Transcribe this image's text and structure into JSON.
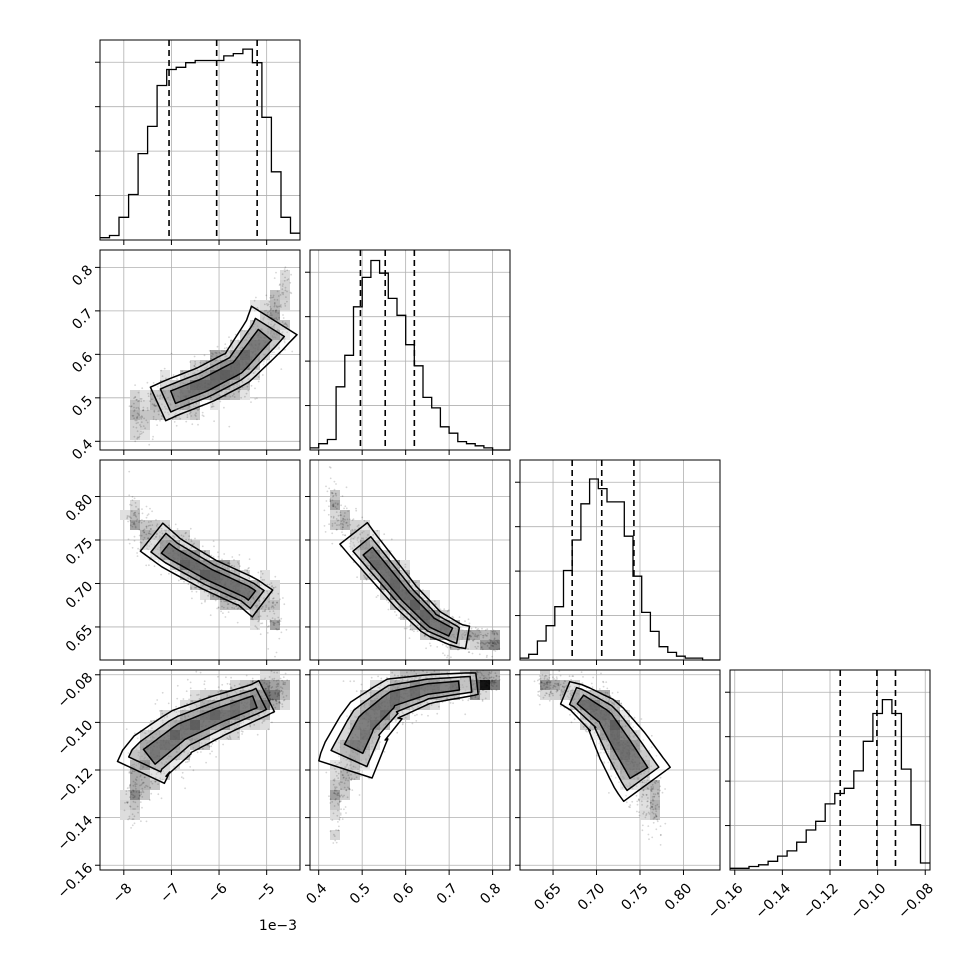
{
  "figure": {
    "offset_text": "1e−3"
  },
  "chart_data": {
    "type": "corner",
    "grid": true,
    "parameters": [
      {
        "axis_range": [
          -8.5,
          -4.3
        ],
        "ticks": [
          -8,
          -7,
          -6,
          -5
        ],
        "tick_labels": [
          "−8",
          "−7",
          "−6",
          "−5"
        ],
        "scale_factor": 0.001,
        "quantiles": [
          -7.05,
          -6.05,
          -5.2
        ],
        "hist_bin_edges": [
          -8.5,
          -8.3,
          -8.1,
          -7.9,
          -7.7,
          -7.5,
          -7.3,
          -7.1,
          -6.9,
          -6.7,
          -6.5,
          -6.3,
          -6.1,
          -5.9,
          -5.7,
          -5.5,
          -5.3,
          -5.1,
          -4.9,
          -4.7,
          -4.5,
          -4.3
        ],
        "hist_counts": [
          1,
          2,
          10,
          20,
          38,
          50,
          68,
          75,
          76,
          78,
          79,
          79,
          79,
          81,
          82,
          84,
          78,
          54,
          30,
          10,
          3
        ],
        "hist_ylim": [
          0,
          88
        ]
      },
      {
        "axis_range": [
          0.38,
          0.84
        ],
        "ticks": [
          0.4,
          0.5,
          0.6,
          0.7,
          0.8
        ],
        "tick_labels": [
          "0.4",
          "0.5",
          "0.6",
          "0.7",
          "0.8"
        ],
        "quantiles": [
          0.496,
          0.553,
          0.62
        ],
        "hist_bin_edges": [
          0.38,
          0.4,
          0.42,
          0.44,
          0.46,
          0.48,
          0.5,
          0.52,
          0.54,
          0.56,
          0.58,
          0.6,
          0.62,
          0.64,
          0.66,
          0.68,
          0.7,
          0.72,
          0.74,
          0.76,
          0.78,
          0.8,
          0.82,
          0.84
        ],
        "hist_counts": [
          1,
          3,
          5,
          30,
          45,
          68,
          82,
          90,
          84,
          72,
          64,
          50,
          40,
          25,
          20,
          11,
          8,
          4,
          3,
          2,
          1,
          0,
          0
        ],
        "hist_ylim": [
          0,
          95
        ]
      },
      {
        "axis_range": [
          0.612,
          0.842
        ],
        "ticks": [
          0.65,
          0.7,
          0.75,
          0.8
        ],
        "tick_labels": [
          "0.65",
          "0.70",
          "0.75",
          "0.80"
        ],
        "quantiles": [
          0.672,
          0.706,
          0.743
        ],
        "hist_bin_edges": [
          0.612,
          0.622,
          0.632,
          0.642,
          0.652,
          0.662,
          0.672,
          0.682,
          0.692,
          0.702,
          0.712,
          0.722,
          0.732,
          0.742,
          0.752,
          0.762,
          0.772,
          0.782,
          0.792,
          0.802,
          0.812,
          0.822,
          0.832,
          0.842
        ],
        "hist_counts": [
          1,
          3,
          10,
          18,
          28,
          47,
          63,
          82,
          95,
          90,
          83,
          83,
          65,
          44,
          25,
          15,
          7,
          4,
          2,
          1,
          1,
          0,
          0
        ],
        "hist_ylim": [
          0,
          105
        ]
      },
      {
        "axis_range": [
          -0.162,
          -0.078
        ],
        "ticks": [
          -0.16,
          -0.14,
          -0.12,
          -0.1,
          -0.08
        ],
        "tick_labels": [
          "−0.16",
          "−0.14",
          "−0.12",
          "−0.10",
          "−0.08"
        ],
        "quantiles": [
          -0.1157,
          -0.1003,
          -0.0925
        ],
        "hist_bin_edges": [
          -0.162,
          -0.158,
          -0.154,
          -0.15,
          -0.146,
          -0.142,
          -0.138,
          -0.134,
          -0.13,
          -0.126,
          -0.122,
          -0.118,
          -0.114,
          -0.11,
          -0.106,
          -0.102,
          -0.098,
          -0.094,
          -0.09,
          -0.086,
          -0.082,
          -0.078
        ],
        "hist_counts": [
          1,
          1,
          2,
          3,
          5,
          8,
          11,
          16,
          23,
          28,
          38,
          44,
          47,
          57,
          74,
          90,
          98,
          90,
          58,
          26,
          4
        ],
        "hist_ylim": [
          0,
          115
        ]
      }
    ],
    "pairs": [
      {
        "x_param": 0,
        "y_param": 1,
        "path_points": [
          [
            -7.7,
            0.465
          ],
          [
            -7.0,
            0.5
          ],
          [
            -6.3,
            0.53
          ],
          [
            -5.6,
            0.57
          ],
          [
            -5.0,
            0.65
          ],
          [
            -4.6,
            0.72
          ]
        ],
        "widths": [
          0.035,
          0.035,
          0.035,
          0.035,
          0.045,
          0.06
        ],
        "density_peak": [
          -6.3,
          0.53
        ],
        "scatter_count": 1100
      },
      {
        "x_param": 0,
        "y_param": 2,
        "path_points": [
          [
            -7.8,
            0.77
          ],
          [
            -7.0,
            0.735
          ],
          [
            -6.2,
            0.71
          ],
          [
            -5.4,
            0.69
          ],
          [
            -4.8,
            0.665
          ]
        ],
        "widths": [
          0.018,
          0.016,
          0.015,
          0.015,
          0.017
        ],
        "density_peak": [
          -6.0,
          0.71
        ],
        "scatter_count": 1100
      },
      {
        "x_param": 1,
        "y_param": 2,
        "path_points": [
          [
            0.43,
            0.79
          ],
          [
            0.5,
            0.745
          ],
          [
            0.55,
            0.715
          ],
          [
            0.6,
            0.685
          ],
          [
            0.66,
            0.655
          ],
          [
            0.72,
            0.64
          ],
          [
            0.8,
            0.633
          ]
        ],
        "widths": [
          0.018,
          0.016,
          0.015,
          0.014,
          0.013,
          0.011,
          0.01
        ],
        "density_peak": [
          0.545,
          0.72
        ],
        "scatter_count": 1100
      },
      {
        "x_param": 0,
        "y_param": 3,
        "path_points": [
          [
            -7.85,
            -0.13
          ],
          [
            -7.5,
            -0.115
          ],
          [
            -6.8,
            -0.104
          ],
          [
            -6.0,
            -0.097
          ],
          [
            -5.2,
            -0.091
          ],
          [
            -4.7,
            -0.086
          ]
        ],
        "widths": [
          0.009,
          0.009,
          0.008,
          0.007,
          0.006,
          0.006
        ],
        "density_peak": [
          -5.3,
          -0.09
        ],
        "scatter_count": 1100
      },
      {
        "x_param": 1,
        "y_param": 3,
        "path_points": [
          [
            0.44,
            -0.132
          ],
          [
            0.47,
            -0.115
          ],
          [
            0.51,
            -0.1
          ],
          [
            0.57,
            -0.09
          ],
          [
            0.65,
            -0.086
          ],
          [
            0.75,
            -0.084
          ],
          [
            0.8,
            -0.083
          ]
        ],
        "widths": [
          0.009,
          0.01,
          0.009,
          0.007,
          0.005,
          0.004,
          0.003
        ],
        "density_peak": [
          0.54,
          -0.094
        ],
        "scatter_count": 1100
      },
      {
        "x_param": 2,
        "y_param": 3,
        "path_points": [
          [
            0.64,
            -0.084
          ],
          [
            0.68,
            -0.09
          ],
          [
            0.71,
            -0.098
          ],
          [
            0.73,
            -0.11
          ],
          [
            0.75,
            -0.122
          ],
          [
            0.77,
            -0.132
          ]
        ],
        "widths": [
          0.003,
          0.005,
          0.007,
          0.009,
          0.01,
          0.01
        ],
        "density_peak": [
          0.69,
          -0.094
        ],
        "scatter_count": 1100
      }
    ]
  }
}
